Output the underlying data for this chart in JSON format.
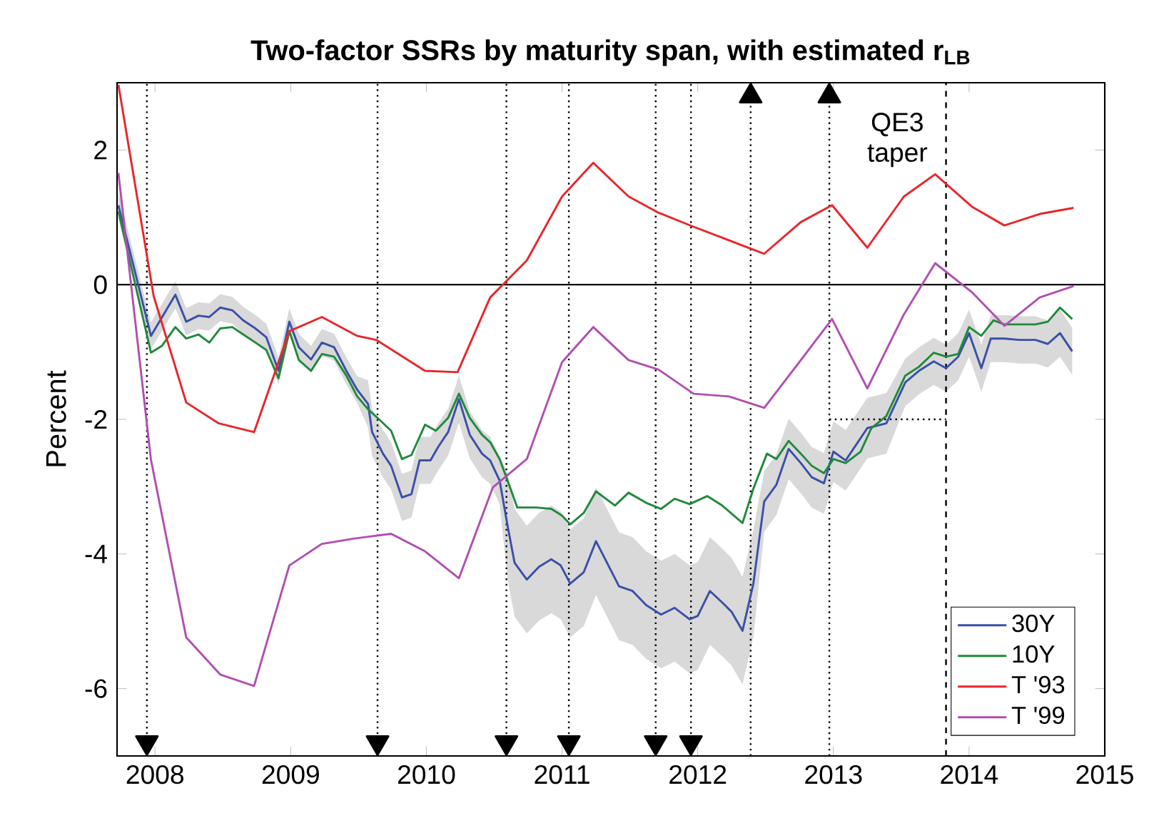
{
  "chart_data": {
    "type": "line",
    "title": "Two-factor SSRs by maturity span, with estimated r$_{LB}$",
    "ylabel": "Percent",
    "xlim": [
      2007.72,
      2015
    ],
    "ylim": [
      -7,
      3
    ],
    "xticks": [
      2008,
      2009,
      2010,
      2011,
      2012,
      2013,
      2014,
      2015
    ],
    "yticks": [
      -6,
      -4,
      -2,
      0,
      2
    ],
    "legend": "bottom right",
    "series": [
      {
        "name": "30Y",
        "color": "#3a4fa8",
        "x": [
          2007.73,
          2007.97,
          2008.15,
          2008.23,
          2008.32,
          2008.4,
          2008.48,
          2008.57,
          2008.65,
          2008.74,
          2008.82,
          2008.91,
          2008.99,
          2009.06,
          2009.15,
          2009.23,
          2009.32,
          2009.41,
          2009.49,
          2009.57,
          2009.6,
          2009.68,
          2009.74,
          2009.82,
          2009.89,
          2009.95,
          2010.03,
          2010.09,
          2010.16,
          2010.24,
          2010.32,
          2010.41,
          2010.47,
          2010.54,
          2010.6,
          2010.65,
          2010.74,
          2010.83,
          2010.92,
          2010.99,
          2011.06,
          2011.16,
          2011.25,
          2011.42,
          2011.52,
          2011.62,
          2011.73,
          2011.83,
          2011.94,
          2012.0,
          2012.09,
          2012.18,
          2012.25,
          2012.33,
          2012.41,
          2012.49,
          2012.58,
          2012.67,
          2012.76,
          2012.84,
          2012.93,
          2013.0,
          2013.09,
          2013.25,
          2013.39,
          2013.53,
          2013.63,
          2013.74,
          2013.83,
          2013.92,
          2014.0,
          2014.09,
          2014.16,
          2014.26,
          2014.37,
          2014.49,
          2014.58,
          2014.67,
          2014.76
        ],
        "values": [
          1.18,
          -0.76,
          -0.15,
          -0.55,
          -0.46,
          -0.48,
          -0.34,
          -0.38,
          -0.53,
          -0.65,
          -0.78,
          -1.28,
          -0.55,
          -0.93,
          -1.11,
          -0.86,
          -0.93,
          -1.28,
          -1.56,
          -1.77,
          -2.19,
          -2.51,
          -2.69,
          -3.16,
          -3.11,
          -2.61,
          -2.61,
          -2.4,
          -2.19,
          -1.7,
          -2.23,
          -2.51,
          -2.61,
          -2.91,
          -3.6,
          -4.13,
          -4.38,
          -4.19,
          -4.08,
          -4.17,
          -4.44,
          -4.27,
          -3.81,
          -4.48,
          -4.55,
          -4.76,
          -4.9,
          -4.8,
          -4.97,
          -4.92,
          -4.55,
          -4.72,
          -4.86,
          -5.14,
          -4.44,
          -3.22,
          -2.97,
          -2.44,
          -2.65,
          -2.86,
          -2.95,
          -2.48,
          -2.61,
          -2.13,
          -2.06,
          -1.45,
          -1.28,
          -1.14,
          -1.24,
          -1.07,
          -0.72,
          -1.24,
          -0.8,
          -0.8,
          -0.82,
          -0.82,
          -0.88,
          -0.72,
          -0.99
        ],
        "lower": [
          0.98,
          -0.96,
          -0.35,
          -0.75,
          -0.66,
          -0.68,
          -0.54,
          -0.58,
          -0.73,
          -0.85,
          -0.98,
          -1.48,
          -0.75,
          -1.13,
          -1.31,
          -1.06,
          -1.13,
          -1.48,
          -1.76,
          -2.12,
          -2.54,
          -2.86,
          -3.04,
          -3.51,
          -3.46,
          -2.96,
          -2.96,
          -2.75,
          -2.54,
          -2.05,
          -2.58,
          -2.86,
          -2.96,
          -3.26,
          -4.4,
          -4.93,
          -5.18,
          -4.99,
          -4.88,
          -4.97,
          -5.24,
          -5.07,
          -4.61,
          -5.28,
          -5.35,
          -5.56,
          -5.7,
          -5.6,
          -5.77,
          -5.72,
          -5.35,
          -5.52,
          -5.66,
          -5.94,
          -5.24,
          -3.67,
          -3.42,
          -2.89,
          -3.1,
          -3.31,
          -3.4,
          -2.93,
          -3.06,
          -2.58,
          -2.51,
          -1.8,
          -1.63,
          -1.49,
          -1.59,
          -1.42,
          -1.07,
          -1.59,
          -1.15,
          -1.15,
          -1.17,
          -1.17,
          -1.23,
          -1.07,
          -1.34
        ],
        "upper": [
          1.38,
          -0.56,
          0.05,
          -0.35,
          -0.26,
          -0.28,
          -0.14,
          -0.18,
          -0.33,
          -0.45,
          -0.58,
          -1.08,
          -0.35,
          -0.73,
          -0.91,
          -0.66,
          -0.73,
          -1.08,
          -1.36,
          -1.42,
          -1.84,
          -2.16,
          -2.34,
          -2.81,
          -2.76,
          -2.26,
          -2.26,
          -2.05,
          -1.84,
          -1.35,
          -1.88,
          -2.16,
          -2.26,
          -2.56,
          -2.8,
          -3.33,
          -3.58,
          -3.39,
          -3.28,
          -3.37,
          -3.64,
          -3.47,
          -3.01,
          -3.68,
          -3.75,
          -3.96,
          -4.1,
          -4.0,
          -4.17,
          -4.12,
          -3.75,
          -3.92,
          -4.06,
          -4.34,
          -3.64,
          -2.77,
          -2.52,
          -1.99,
          -2.2,
          -2.41,
          -2.5,
          -2.03,
          -2.16,
          -1.68,
          -1.61,
          -1.1,
          -0.93,
          -0.79,
          -0.89,
          -0.72,
          -0.37,
          -0.89,
          -0.45,
          -0.45,
          -0.47,
          -0.47,
          -0.53,
          -0.37,
          -0.64
        ]
      },
      {
        "name": "10Y",
        "color": "#1f8a3c",
        "x": [
          2007.73,
          2007.97,
          2008.05,
          2008.15,
          2008.23,
          2008.32,
          2008.4,
          2008.48,
          2008.57,
          2008.65,
          2008.74,
          2008.82,
          2008.91,
          2008.99,
          2009.06,
          2009.15,
          2009.23,
          2009.32,
          2009.41,
          2009.49,
          2009.57,
          2009.63,
          2009.74,
          2009.82,
          2009.89,
          2009.99,
          2010.07,
          2010.16,
          2010.24,
          2010.32,
          2010.41,
          2010.47,
          2010.54,
          2010.62,
          2010.67,
          2010.81,
          2010.92,
          2011.0,
          2011.06,
          2011.16,
          2011.25,
          2011.39,
          2011.49,
          2011.62,
          2011.73,
          2011.83,
          2011.94,
          2012.07,
          2012.18,
          2012.33,
          2012.41,
          2012.51,
          2012.58,
          2012.67,
          2012.76,
          2012.84,
          2012.93,
          2013.0,
          2013.09,
          2013.2,
          2013.28,
          2013.39,
          2013.53,
          2013.63,
          2013.74,
          2013.83,
          2013.92,
          2014.0,
          2014.09,
          2014.18,
          2014.26,
          2014.37,
          2014.49,
          2014.58,
          2014.67,
          2014.76
        ],
        "values": [
          1.09,
          -1.01,
          -0.91,
          -0.63,
          -0.8,
          -0.74,
          -0.86,
          -0.65,
          -0.63,
          -0.74,
          -0.86,
          -0.97,
          -1.39,
          -0.69,
          -1.12,
          -1.28,
          -1.03,
          -1.07,
          -1.35,
          -1.66,
          -1.85,
          -1.96,
          -2.17,
          -2.59,
          -2.53,
          -2.08,
          -2.17,
          -1.98,
          -1.62,
          -1.98,
          -2.23,
          -2.34,
          -2.59,
          -3.03,
          -3.31,
          -3.31,
          -3.33,
          -3.43,
          -3.56,
          -3.39,
          -3.07,
          -3.28,
          -3.09,
          -3.24,
          -3.33,
          -3.18,
          -3.26,
          -3.14,
          -3.28,
          -3.54,
          -3.03,
          -2.51,
          -2.59,
          -2.32,
          -2.51,
          -2.69,
          -2.8,
          -2.59,
          -2.65,
          -2.48,
          -2.13,
          -1.95,
          -1.35,
          -1.22,
          -1.01,
          -1.07,
          -1.03,
          -0.63,
          -0.76,
          -0.53,
          -0.59,
          -0.59,
          -0.59,
          -0.55,
          -0.34,
          -0.51
        ]
      },
      {
        "name": "T '93",
        "color": "#e8262b",
        "x": [
          2007.73,
          2007.99,
          2008.23,
          2008.47,
          2008.73,
          2008.99,
          2009.23,
          2009.49,
          2009.63,
          2009.99,
          2010.23,
          2010.47,
          2010.74,
          2011.0,
          2011.23,
          2011.49,
          2011.71,
          2011.97,
          2012.49,
          2012.76,
          2012.99,
          2013.25,
          2013.52,
          2013.75,
          2014.02,
          2014.26,
          2014.52,
          2014.77
        ],
        "values": [
          2.97,
          -0.17,
          -1.75,
          -2.06,
          -2.19,
          -0.69,
          -0.48,
          -0.76,
          -0.82,
          -1.28,
          -1.3,
          -0.19,
          0.36,
          1.31,
          1.81,
          1.31,
          1.07,
          0.86,
          0.46,
          0.93,
          1.18,
          0.55,
          1.31,
          1.64,
          1.16,
          0.88,
          1.05,
          1.14
        ]
      },
      {
        "name": "T '99",
        "color": "#b04fb0",
        "x": [
          2007.73,
          2007.97,
          2008.23,
          2008.48,
          2008.73,
          2008.99,
          2009.23,
          2009.47,
          2009.74,
          2009.99,
          2010.24,
          2010.49,
          2010.74,
          2011.0,
          2011.23,
          2011.49,
          2011.71,
          2011.97,
          2012.23,
          2012.49,
          2012.76,
          2012.99,
          2013.25,
          2013.52,
          2013.75,
          2014.02,
          2014.26,
          2014.52,
          2014.77
        ],
        "values": [
          1.66,
          -2.6,
          -5.24,
          -5.79,
          -5.96,
          -4.17,
          -3.85,
          -3.77,
          -3.7,
          -3.96,
          -4.36,
          -3.01,
          -2.59,
          -1.15,
          -0.63,
          -1.12,
          -1.26,
          -1.62,
          -1.66,
          -1.83,
          -1.12,
          -0.51,
          -1.54,
          -0.44,
          0.32,
          -0.11,
          -0.61,
          -0.19,
          -0.02
        ]
      },
      {
        "color": "#000000",
        "line_style": "dotted",
        "x": [
          2012.97,
          2013.83
        ],
        "values": [
          -2,
          -2
        ]
      },
      {
        "type": "scatter",
        "marker": "triangle",
        "color": "#000000",
        "x": [
          2007.94,
          2009.64,
          2010.59,
          2011.05,
          2011.69,
          2011.95
        ],
        "values": [
          -6.8,
          -6.8,
          -6.8,
          -6.8,
          -6.8,
          -6.8
        ]
      },
      {
        "type": "scatter",
        "marker": "triangle",
        "color": "#000000",
        "x": [
          2012.39,
          2012.97
        ],
        "values": [
          2.8,
          2.8
        ]
      }
    ],
    "ref_lines": [
      {
        "axis": "y",
        "value": 0,
        "color": "#000000",
        "line_style": "solid"
      },
      {
        "axis": "x",
        "value": 2007.94,
        "color": "#000000",
        "line_style": "dotted"
      },
      {
        "axis": "x",
        "value": 2009.64,
        "color": "#000000",
        "line_style": "dotted"
      },
      {
        "axis": "x",
        "value": 2010.59,
        "color": "#000000",
        "line_style": "dotted"
      },
      {
        "axis": "x",
        "value": 2011.05,
        "color": "#000000",
        "line_style": "dotted"
      },
      {
        "axis": "x",
        "value": 2011.69,
        "color": "#000000",
        "line_style": "dotted"
      },
      {
        "axis": "x",
        "value": 2011.95,
        "color": "#000000",
        "line_style": "dotted"
      },
      {
        "axis": "x",
        "value": 2012.39,
        "color": "#000000",
        "line_style": "dotted"
      },
      {
        "axis": "x",
        "value": 2012.97,
        "color": "#000000",
        "line_style": "dotted"
      },
      {
        "axis": "x",
        "value": 2013.83,
        "color": "#000000",
        "line_style": "dashed"
      }
    ],
    "annotations": [
      "QE3 taper"
    ]
  }
}
